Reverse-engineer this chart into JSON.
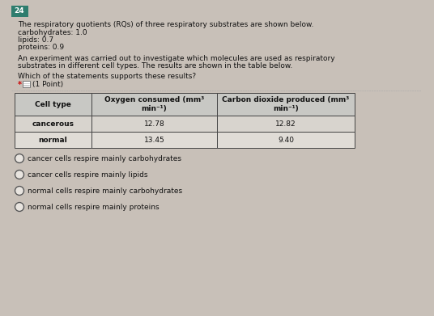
{
  "bg_color": "#c8c0b8",
  "panel_color": "#e8e4df",
  "question_number": "24",
  "question_number_bg": "#2e7d6e",
  "question_number_color": "white",
  "intro_text": "The respiratory quotients (RQs) of three respiratory substrates are shown below.",
  "substrate_lines": [
    "carbohydrates: 1.0",
    "lipids: 0.7",
    "proteins: 0.9"
  ],
  "experiment_line1": "An experiment was carried out to investigate which molecules are used as respiratory",
  "experiment_line2": "substrates in different cell types. The results are shown in the table below.",
  "question_text": "Which of the statements supports these results?",
  "point_text": "(1 Point)",
  "table_header1": "Cell type",
  "table_header2": "Oxygen consumed (mm³\nmin⁻¹)",
  "table_header3": "Carbon dioxide produced (mm³\nmin⁻¹)",
  "table_rows": [
    [
      "cancerous",
      "12.78",
      "12.82"
    ],
    [
      "normal",
      "13.45",
      "9.40"
    ]
  ],
  "options": [
    "cancer cells respire mainly carbohydrates",
    "cancer cells respire mainly lipids",
    "normal cells respire mainly carbohydrates",
    "normal cells respire mainly proteins"
  ],
  "table_header_bg": "#c8c8c4",
  "table_row1_bg": "#d8d4ce",
  "table_row2_bg": "#e0dcd6",
  "table_border_color": "#444444",
  "text_font_size": 6.5,
  "header_font_size": 6.5,
  "body_font_size": 6.5,
  "option_font_size": 6.5,
  "fig_w": 5.36,
  "fig_h": 3.91,
  "dpi": 100
}
